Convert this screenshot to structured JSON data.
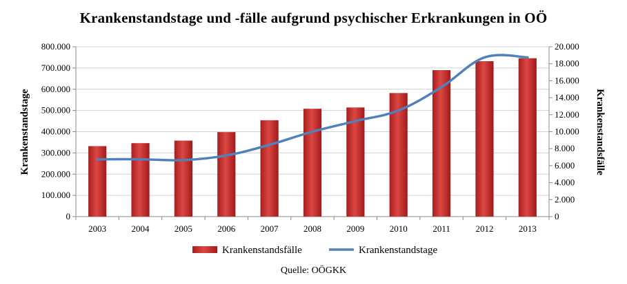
{
  "chart_data": {
    "type": "bar",
    "title": "Krankenstandstage und -fälle aufgrund psychischer Erkrankungen in OÖ",
    "categories": [
      "2003",
      "2004",
      "2005",
      "2006",
      "2007",
      "2008",
      "2009",
      "2010",
      "2011",
      "2012",
      "2013"
    ],
    "series": [
      {
        "name": "Krankenstandsfälle",
        "type": "bar",
        "axis": "right",
        "color": "#c8312f",
        "values": [
          8300,
          8650,
          8950,
          9950,
          11350,
          12700,
          12850,
          14550,
          17250,
          18300,
          18650
        ]
      },
      {
        "name": "Krankenstandstage",
        "type": "line",
        "axis": "left",
        "color": "#4f81bd",
        "values": [
          270000,
          270000,
          266000,
          288000,
          338000,
          400000,
          450000,
          500000,
          610000,
          750000,
          750000
        ]
      }
    ],
    "y_left": {
      "label": "Krankenstandstage",
      "range": [
        0,
        800000
      ],
      "ticks": [
        "0",
        "100.000",
        "200.000",
        "300.000",
        "400.000",
        "500.000",
        "600.000",
        "700.000",
        "800.000"
      ]
    },
    "y_right": {
      "label": "Krankenstandsfälle",
      "range": [
        0,
        20000
      ],
      "ticks": [
        "0",
        "2.000",
        "4.000",
        "6.000",
        "8.000",
        "10.000",
        "12.000",
        "14.000",
        "16.000",
        "18.000",
        "20.000"
      ]
    },
    "grid": true,
    "legend": "bottom",
    "source": "Quelle: OÖGKK"
  }
}
